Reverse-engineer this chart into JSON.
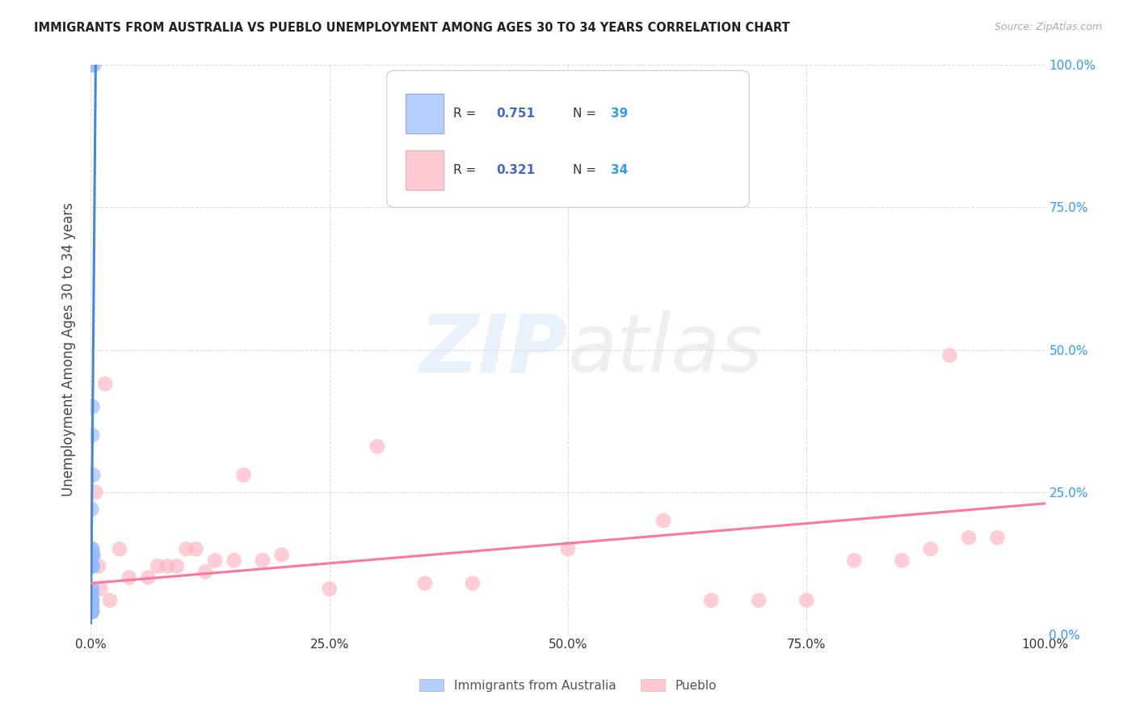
{
  "title": "IMMIGRANTS FROM AUSTRALIA VS PUEBLO UNEMPLOYMENT AMONG AGES 30 TO 34 YEARS CORRELATION CHART",
  "source": "Source: ZipAtlas.com",
  "ylabel": "Unemployment Among Ages 30 to 34 years",
  "x_tick_labels": [
    "0.0%",
    "25.0%",
    "50.0%",
    "75.0%",
    "100.0%"
  ],
  "x_tick_vals": [
    0,
    25,
    50,
    75,
    100
  ],
  "y_tick_labels": [
    "0.0%",
    "25.0%",
    "50.0%",
    "75.0%",
    "100.0%"
  ],
  "y_tick_vals": [
    0,
    25,
    50,
    75,
    100
  ],
  "legend1_label": "Immigrants from Australia",
  "legend1_R": "R = 0.751",
  "legend1_N": "N = 39",
  "legend2_label": "Pueblo",
  "legend2_R": "R = 0.321",
  "legend2_N": "N = 34",
  "blue_color": "#99BBFF",
  "pink_color": "#FFB3C1",
  "blue_line_color": "#4488DD",
  "pink_line_color": "#FF7799",
  "R_label_color": "#333333",
  "R_val_color": "#4466CC",
  "N_val_color": "#3399FF",
  "blue_scatter_x": [
    0.05,
    0.07,
    0.35,
    0.08,
    0.1,
    0.12,
    0.1,
    0.12,
    0.15,
    0.15,
    0.1,
    0.12,
    0.05,
    0.1,
    0.12,
    0.15,
    0.08,
    0.05,
    0.05,
    0.07,
    0.08,
    0.1,
    0.12,
    0.15,
    0.08,
    0.1,
    0.1,
    0.15,
    0.2,
    0.25,
    0.15,
    0.08,
    0.07,
    0.05,
    0.1,
    0.12,
    0.18,
    0.15,
    0.25
  ],
  "blue_scatter_y": [
    100,
    100,
    100,
    22,
    12,
    12,
    8,
    8,
    12,
    14,
    7,
    7,
    5,
    4,
    4,
    4,
    5,
    4,
    4,
    4,
    5,
    12,
    15,
    15,
    6,
    6,
    5,
    14,
    12,
    14,
    6,
    6,
    5,
    4,
    5,
    5,
    40,
    35,
    28
  ],
  "pink_scatter_x": [
    0.5,
    1.0,
    3.0,
    7.0,
    9.0,
    10.0,
    11.0,
    13.0,
    15.0,
    18.0,
    20.0,
    25.0,
    30.0,
    35.0,
    40.0,
    50.0,
    60.0,
    65.0,
    70.0,
    75.0,
    80.0,
    85.0,
    90.0,
    92.0,
    95.0,
    0.8,
    1.5,
    2.0,
    4.0,
    6.0,
    8.0,
    12.0,
    16.0,
    88.0
  ],
  "pink_scatter_y": [
    25,
    8,
    15,
    12,
    12,
    15,
    15,
    13,
    13,
    13,
    14,
    8,
    33,
    9,
    9,
    15,
    20,
    6,
    6,
    6,
    13,
    13,
    49,
    17,
    17,
    12,
    44,
    6,
    10,
    10,
    12,
    11,
    28,
    15
  ],
  "blue_trendline_x": [
    0,
    0.5
  ],
  "blue_trendline_y": [
    2,
    100
  ],
  "pink_trendline_x": [
    0,
    100
  ],
  "pink_trendline_y": [
    9,
    23
  ],
  "watermark_zip": "ZIP",
  "watermark_atlas": "atlas",
  "background_color": "#FFFFFF",
  "grid_color": "#DDDDDD",
  "tick_color": "#3399FF"
}
